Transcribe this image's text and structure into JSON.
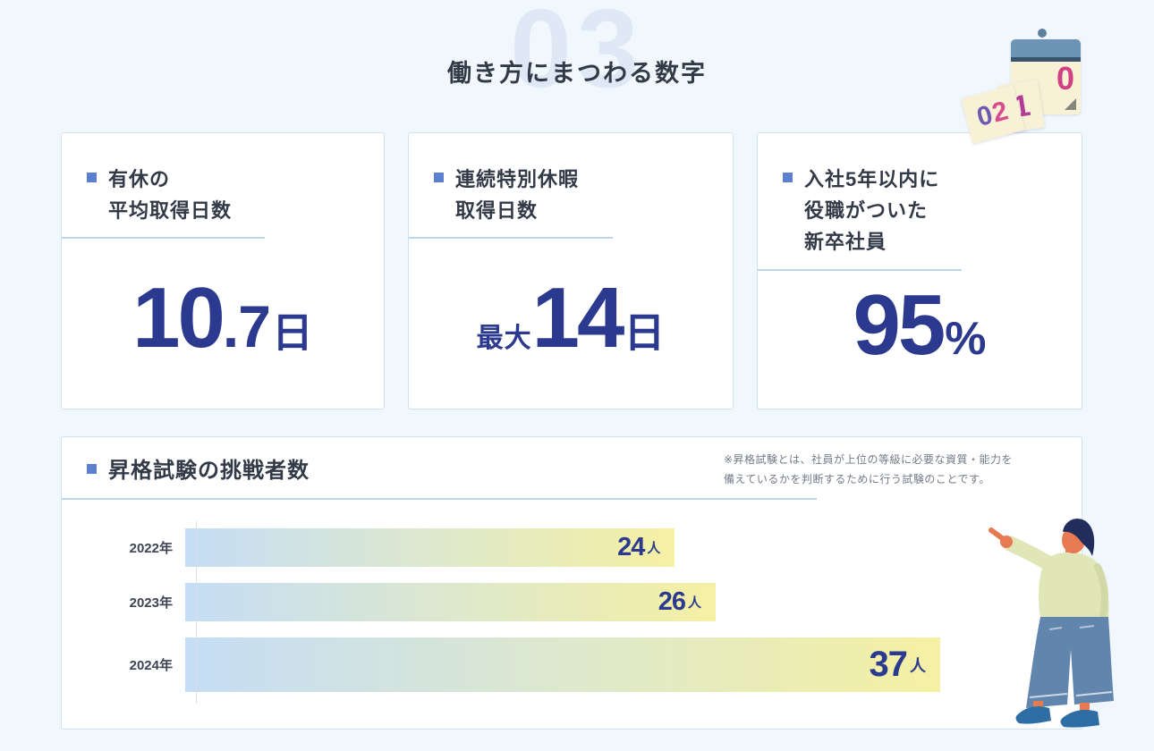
{
  "page": {
    "title": "働き方にまつわる数字",
    "watermark": "03",
    "background_color": "#f1f8fd",
    "accent_navy": "#2b3a8e",
    "bullet_color": "#5c7fd0",
    "underline_color": "#bdd6ef",
    "card_border_color": "#cfe2f4"
  },
  "calendar_icon": {
    "name": "flip-calendar-icon",
    "main_page_digit": "0",
    "flying_page_1": "1",
    "flying_page_2": "02"
  },
  "stat_cards": [
    {
      "heading_line1": "有休の",
      "heading_line2": "平均取得日数",
      "heading_line3": "",
      "value_prefix": "",
      "value": "10",
      "value_decimal": ".7",
      "unit": "日"
    },
    {
      "heading_line1": "連続特別休暇",
      "heading_line2": "取得日数",
      "heading_line3": "",
      "value_prefix": "最大",
      "value": "14",
      "value_decimal": "",
      "unit": "日"
    },
    {
      "heading_line1": "入社5年以内に",
      "heading_line2": "役職がついた",
      "heading_line3": "新卒社員",
      "value_prefix": "",
      "value": "95",
      "value_decimal": "",
      "unit": "%"
    }
  ],
  "chart_card": {
    "title": "昇格試験の挑戦者数",
    "note_line1": "※昇格試験とは、社員が上位の等級に必要な資質・能力を",
    "note_line2": "備えているかを判断するために行う試験のことです。"
  },
  "chart_data": {
    "type": "bar",
    "orientation": "horizontal",
    "title": "昇格試験の挑戦者数",
    "categories": [
      "2022年",
      "2023年",
      "2024年"
    ],
    "values": [
      24,
      26,
      37
    ],
    "unit": "人",
    "xlim": [
      0,
      42
    ],
    "grid": false,
    "legend": "none",
    "bar_gradient": [
      "#c5ddf6",
      "#dde8cd",
      "#f5f0a3"
    ],
    "value_label_color": "#2b3a8e",
    "category_label_color": "#3e4454"
  },
  "person_illustration": {
    "name": "pointing-person-illustration"
  }
}
